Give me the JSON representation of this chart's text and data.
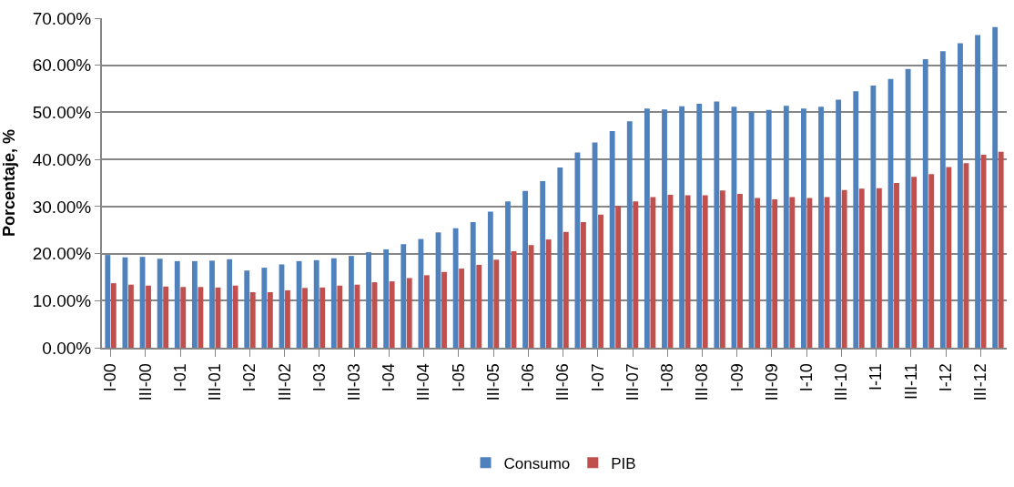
{
  "chart_data": {
    "type": "bar",
    "ylabel": "Porcentaje, %",
    "categories": [
      "I-00",
      null,
      "III-00",
      null,
      "I-01",
      null,
      "III-01",
      null,
      "I-02",
      null,
      "III-02",
      null,
      "I-03",
      null,
      "III-03",
      null,
      "I-04",
      null,
      "III-04",
      null,
      "I-05",
      null,
      "III-05",
      null,
      "I-06",
      null,
      "III-06",
      null,
      "I-07",
      null,
      "III-07",
      null,
      "I-08",
      null,
      "III-08",
      null,
      "I-09",
      null,
      "III-09",
      null,
      "I-10",
      null,
      "III-10",
      null,
      "I-11",
      null,
      "III-11",
      null,
      "I-12",
      null,
      "III-12",
      null
    ],
    "series": [
      {
        "name": "Consumo",
        "color": "#4f81bd",
        "values": [
          19.7,
          19.2,
          19.3,
          18.9,
          18.4,
          18.4,
          18.5,
          18.8,
          16.4,
          17.0,
          17.7,
          18.4,
          18.6,
          19.0,
          19.5,
          20.3,
          20.9,
          22.0,
          23.1,
          24.5,
          25.4,
          26.7,
          28.9,
          31.1,
          33.3,
          35.4,
          38.3,
          41.5,
          43.6,
          46.0,
          48.1,
          50.8,
          50.6,
          51.3,
          51.8,
          52.3,
          51.2,
          50.1,
          50.5,
          51.4,
          50.8,
          51.2,
          52.7,
          54.5,
          55.7,
          57.1,
          59.2,
          61.3,
          63.0,
          64.7,
          66.4,
          68.1
        ]
      },
      {
        "name": "PIB",
        "color": "#c0504d",
        "values": [
          13.7,
          13.4,
          13.2,
          13.0,
          12.9,
          12.9,
          12.8,
          13.2,
          11.8,
          11.8,
          12.2,
          12.7,
          12.8,
          13.2,
          13.4,
          13.9,
          14.1,
          14.8,
          15.4,
          16.1,
          16.8,
          17.6,
          18.7,
          20.5,
          21.8,
          23.0,
          24.6,
          26.7,
          28.3,
          30.1,
          31.1,
          32.0,
          32.5,
          32.4,
          32.4,
          33.4,
          32.7,
          31.8,
          31.5,
          32.0,
          31.8,
          32.0,
          33.5,
          33.8,
          33.9,
          35.0,
          36.3,
          36.9,
          38.4,
          39.2,
          41.0,
          41.6
        ]
      }
    ],
    "ylim": [
      0,
      70
    ],
    "yticks": [
      {
        "value": 0,
        "label": "0.00%"
      },
      {
        "value": 10,
        "label": "10.00%"
      },
      {
        "value": 20,
        "label": "20.00%"
      },
      {
        "value": 30,
        "label": "30.00%"
      },
      {
        "value": 40,
        "label": "40.00%"
      },
      {
        "value": 50,
        "label": "50.00%"
      },
      {
        "value": 60,
        "label": "60.00%"
      },
      {
        "value": 70,
        "label": "70.00%"
      }
    ],
    "grid": "y",
    "legend": "bottom"
  }
}
